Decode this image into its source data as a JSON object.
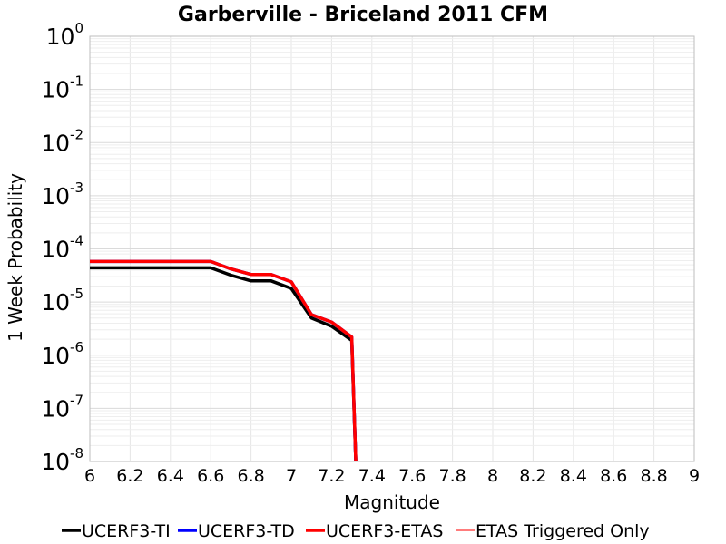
{
  "chart_data": {
    "type": "line",
    "title": "Garberville - Briceland 2011 CFM",
    "xlabel": "Magnitude",
    "ylabel": "1 Week Probability",
    "xlim": [
      6,
      9
    ],
    "ylim": [
      1e-08,
      1
    ],
    "yscale": "log",
    "grid": true,
    "legend_position": "bottom",
    "x_ticks": [
      "6",
      "6.2",
      "6.4",
      "6.6",
      "6.8",
      "7",
      "7.2",
      "7.4",
      "7.6",
      "7.8",
      "8",
      "8.2",
      "8.4",
      "8.6",
      "8.8",
      "9"
    ],
    "y_ticks": [
      {
        "base": "10",
        "exp": "0",
        "value": 1
      },
      {
        "base": "10",
        "exp": "-1",
        "value": 0.1
      },
      {
        "base": "10",
        "exp": "-2",
        "value": 0.01
      },
      {
        "base": "10",
        "exp": "-3",
        "value": 0.001
      },
      {
        "base": "10",
        "exp": "-4",
        "value": 0.0001
      },
      {
        "base": "10",
        "exp": "-5",
        "value": 1e-05
      },
      {
        "base": "10",
        "exp": "-6",
        "value": 1e-06
      },
      {
        "base": "10",
        "exp": "-7",
        "value": 1e-07
      },
      {
        "base": "10",
        "exp": "-8",
        "value": 1e-08
      }
    ],
    "series": [
      {
        "name": "UCERF3-TI",
        "color": "#000000",
        "x": [
          6.0,
          6.1,
          6.2,
          6.3,
          6.4,
          6.5,
          6.6,
          6.7,
          6.8,
          6.9,
          7.0,
          7.1,
          7.2,
          7.3,
          7.32
        ],
        "y": [
          4.4e-05,
          4.4e-05,
          4.4e-05,
          4.4e-05,
          4.4e-05,
          4.4e-05,
          4.4e-05,
          3.2e-05,
          2.5e-05,
          2.5e-05,
          1.8e-05,
          5e-06,
          3.5e-06,
          1.9e-06,
          1e-08
        ]
      },
      {
        "name": "UCERF3-TD",
        "color": "#0000ff",
        "x": [
          6.0,
          6.1,
          6.2,
          6.3,
          6.4,
          6.5,
          6.6,
          6.7,
          6.8,
          6.9,
          7.0,
          7.1,
          7.2,
          7.3,
          7.32
        ],
        "y": [
          5.8e-05,
          5.8e-05,
          5.8e-05,
          5.8e-05,
          5.8e-05,
          5.8e-05,
          5.8e-05,
          4.2e-05,
          3.3e-05,
          3.3e-05,
          2.4e-05,
          5.8e-06,
          4.2e-06,
          2.2e-06,
          1e-08
        ]
      },
      {
        "name": "UCERF3-ETAS",
        "color": "#ff0000",
        "x": [
          6.0,
          6.1,
          6.2,
          6.3,
          6.4,
          6.5,
          6.6,
          6.7,
          6.8,
          6.9,
          7.0,
          7.1,
          7.2,
          7.3,
          7.32
        ],
        "y": [
          5.8e-05,
          5.8e-05,
          5.8e-05,
          5.8e-05,
          5.8e-05,
          5.8e-05,
          5.8e-05,
          4.2e-05,
          3.3e-05,
          3.3e-05,
          2.4e-05,
          5.8e-06,
          4.2e-06,
          2.2e-06,
          1e-08
        ]
      },
      {
        "name": "ETAS Triggered Only",
        "color": "#ff5050",
        "x": [],
        "y": []
      }
    ]
  }
}
